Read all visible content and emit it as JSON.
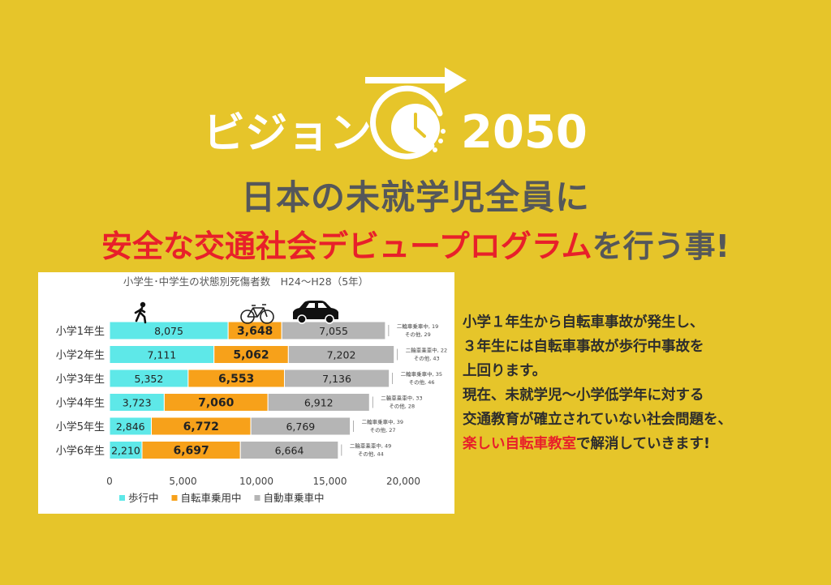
{
  "logo": {
    "left_text": "ビジョン",
    "right_text": "2050",
    "icon": "clock-arrow-icon"
  },
  "headline": {
    "line1": "日本の未就学児全員に",
    "line2_red": "安全な交通社会デビュープログラム",
    "line2_gray": "を行う事!"
  },
  "description": {
    "lines": [
      "小学１年生から自転車事故が発生し、",
      "３年生には自転車事故が歩行中事故を",
      "上回ります。",
      "現在、未就学児～小学低学年に対する",
      "交通教育が確立されていない社会問題を、"
    ],
    "last_red": "楽しい自転車教室",
    "last_rest": "で解消していきます!"
  },
  "icons": [
    "pedestrian-icon",
    "bicycle-icon",
    "car-icon"
  ],
  "colors": {
    "background": "#e6c52a",
    "pedestrian": "#5ee8e8",
    "bicycle": "#f7a11a",
    "car": "#b5b5b5",
    "accent_red": "#e8202a"
  },
  "chart_data": {
    "type": "bar",
    "orientation": "horizontal",
    "stacked": true,
    "title": "小学生･中学生の状態別死傷者数　H24～H28（5年）",
    "categories": [
      "小学1年生",
      "小学2年生",
      "小学3年生",
      "小学4年生",
      "小学5年生",
      "小学6年生"
    ],
    "series": [
      {
        "name": "歩行中",
        "values": [
          8075,
          7111,
          5352,
          3723,
          2846,
          2210
        ]
      },
      {
        "name": "自転車乗用中",
        "values": [
          3648,
          5062,
          6553,
          7060,
          6772,
          6697
        ]
      },
      {
        "name": "自動車乗車中",
        "values": [
          7055,
          7202,
          7136,
          6912,
          6769,
          6664
        ]
      },
      {
        "name": "二輪車乗車中",
        "values": [
          19,
          22,
          35,
          33,
          39,
          49
        ]
      },
      {
        "name": "その他",
        "values": [
          29,
          43,
          46,
          28,
          27,
          44
        ]
      }
    ],
    "data_labels": [
      [
        "8,075",
        "3,648",
        "7,055"
      ],
      [
        "7,111",
        "5,062",
        "7,202"
      ],
      [
        "5,352",
        "6,553",
        "7,136"
      ],
      [
        "3,723",
        "7,060",
        "6,912"
      ],
      [
        "2,846",
        "6,772",
        "6,769"
      ],
      [
        "2,210",
        "6,697",
        "6,664"
      ]
    ],
    "side_notes": [
      [
        "二輪車乗車中, 19",
        "その他, 29"
      ],
      [
        "二輪車乗車中, 22",
        "その他, 43"
      ],
      [
        "二輪車乗車中, 35",
        "その他, 46"
      ],
      [
        "二輪車乗車中, 33",
        "その他, 28"
      ],
      [
        "二輪車乗車中, 39",
        "その他, 27"
      ],
      [
        "二輪車乗車中, 49",
        "その他, 44"
      ]
    ],
    "xlim": [
      0,
      20000
    ],
    "xticks": [
      "0",
      "5,000",
      "10,000",
      "15,000",
      "20,000"
    ],
    "legend": [
      "歩行中",
      "自転車乗用中",
      "自動車乗車中"
    ],
    "legend_position": "bottom",
    "grid": false
  }
}
